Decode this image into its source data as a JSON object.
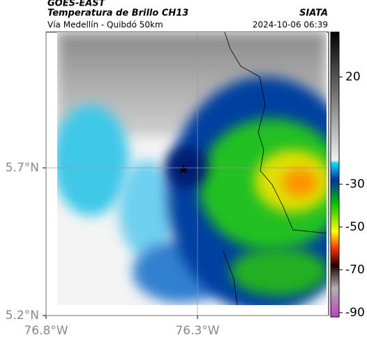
{
  "header": {
    "title": "GOES-EAST",
    "subtitle": "Temperatura de Brillo CH13",
    "source": "SIATA",
    "location": "Vía Medellín - Quibdó 50km",
    "datetime": "2024-10-06 06:39"
  },
  "map": {
    "lonlim": [
      -76.8,
      -75.867
    ],
    "latlim": [
      5.2,
      6.16
    ],
    "lat_ticks": [
      {
        "value": 5.7,
        "label": "5.7°N"
      },
      {
        "value": 5.2,
        "label": "5.2°N"
      }
    ],
    "lon_ticks": [
      {
        "value": -76.8,
        "label": "76.8°W"
      },
      {
        "value": -76.3,
        "label": "76.3°W"
      }
    ]
  },
  "colorbar": {
    "vlim": [
      41,
      -92
    ],
    "ticks": [
      20,
      -30,
      -50,
      -70,
      -90
    ]
  }
}
